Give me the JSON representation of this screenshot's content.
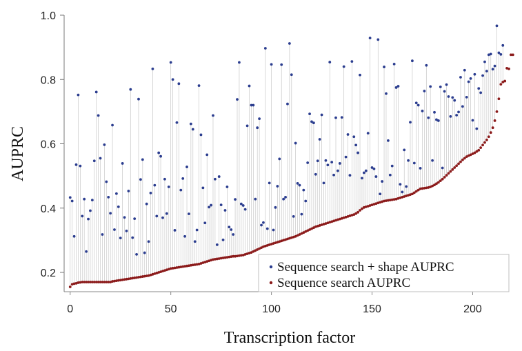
{
  "chart_data": {
    "type": "scatter",
    "xlabel": "Transcription factor",
    "ylabel": "AUPRC",
    "xlim": [
      -3,
      218
    ],
    "ylim": [
      0.14,
      1.0
    ],
    "x_ticks": [
      0,
      50,
      100,
      150,
      200
    ],
    "y_ticks": [
      0.2,
      0.4,
      0.6,
      0.8,
      1.0
    ],
    "y_tick_labels": [
      "0.2",
      "0.4",
      "0.6",
      "0.8",
      "1.0"
    ],
    "grid": false,
    "legend_position": "bottom-right",
    "colors": {
      "shape": "#2b3d8f",
      "seq": "#8b1a1a",
      "stem": "#c8c8c8"
    },
    "series": [
      {
        "name": "Sequence search + shape AUPRC",
        "values": [
          0.433,
          0.422,
          0.312,
          0.535,
          0.752,
          0.531,
          0.375,
          0.428,
          0.265,
          0.366,
          0.392,
          0.425,
          0.547,
          0.761,
          0.688,
          0.555,
          0.318,
          0.597,
          0.482,
          0.434,
          0.384,
          0.658,
          0.333,
          0.445,
          0.404,
          0.307,
          0.539,
          0.371,
          0.329,
          0.453,
          0.769,
          0.308,
          0.367,
          0.256,
          0.739,
          0.489,
          0.551,
          0.261,
          0.413,
          0.296,
          0.447,
          0.833,
          0.471,
          0.375,
          0.572,
          0.561,
          0.37,
          0.49,
          0.383,
          0.466,
          0.853,
          0.8,
          0.331,
          0.666,
          0.787,
          0.456,
          0.492,
          0.312,
          0.528,
          0.382,
          0.662,
          0.645,
          0.296,
          0.332,
          0.781,
          0.628,
          0.463,
          0.354,
          0.566,
          0.403,
          0.409,
          0.688,
          0.49,
          0.286,
          0.498,
          0.41,
          0.301,
          0.393,
          0.466,
          0.341,
          0.333,
          0.318,
          0.427,
          0.738,
          0.853,
          0.413,
          0.408,
          0.396,
          0.656,
          0.78,
          0.72,
          0.72,
          0.428,
          0.65,
          0.678,
          0.347,
          0.355,
          0.897,
          0.336,
          0.478,
          0.847,
          0.332,
          0.402,
          0.468,
          0.553,
          0.846,
          0.428,
          0.434,
          0.724,
          0.912,
          0.815,
          0.374,
          0.602,
          0.477,
          0.471,
          0.381,
          0.456,
          0.422,
          0.541,
          0.693,
          0.669,
          0.665,
          0.505,
          0.547,
          0.614,
          0.69,
          0.478,
          0.548,
          0.534,
          0.854,
          0.543,
          0.503,
          0.681,
          0.516,
          0.539,
          0.682,
          0.84,
          0.559,
          0.629,
          0.502,
          0.856,
          0.622,
          0.596,
          0.572,
          0.814,
          0.493,
          0.51,
          0.516,
          0.633,
          0.929,
          0.526,
          0.522,
          0.498,
          0.924,
          0.444,
          0.483,
          0.839,
          0.756,
          0.61,
          0.503,
          0.531,
          0.848,
          0.775,
          0.779,
          0.474,
          0.45,
          0.581,
          0.467,
          0.548,
          0.667,
          0.858,
          0.54,
          0.727,
          0.72,
          0.524,
          0.702,
          0.764,
          0.844,
          0.681,
          0.778,
          0.548,
          0.698,
          0.675,
          0.672,
          0.777,
          0.525,
          0.763,
          0.784,
          0.747,
          0.685,
          0.744,
          0.735,
          0.689,
          0.699,
          0.807,
          0.716,
          0.829,
          0.745,
          0.793,
          0.803,
          0.673,
          0.816,
          0.647,
          0.772,
          0.759,
          0.812,
          0.855,
          0.826,
          0.877,
          0.879,
          0.832,
          0.842,
          0.967,
          0.883,
          0.878,
          0.906
        ]
      },
      {
        "name": "Sequence search  AUPRC",
        "values": [
          0.155,
          0.163,
          0.165,
          0.166,
          0.168,
          0.169,
          0.17,
          0.17,
          0.17,
          0.17,
          0.17,
          0.17,
          0.17,
          0.17,
          0.17,
          0.17,
          0.17,
          0.17,
          0.17,
          0.17,
          0.17,
          0.172,
          0.173,
          0.174,
          0.175,
          0.176,
          0.177,
          0.178,
          0.179,
          0.18,
          0.181,
          0.182,
          0.183,
          0.184,
          0.185,
          0.186,
          0.187,
          0.188,
          0.189,
          0.19,
          0.192,
          0.194,
          0.196,
          0.198,
          0.2,
          0.202,
          0.204,
          0.206,
          0.208,
          0.21,
          0.212,
          0.213,
          0.214,
          0.215,
          0.216,
          0.217,
          0.218,
          0.219,
          0.22,
          0.221,
          0.222,
          0.223,
          0.224,
          0.225,
          0.226,
          0.228,
          0.23,
          0.232,
          0.234,
          0.236,
          0.238,
          0.24,
          0.241,
          0.242,
          0.243,
          0.244,
          0.245,
          0.246,
          0.247,
          0.248,
          0.249,
          0.25,
          0.25,
          0.251,
          0.252,
          0.253,
          0.254,
          0.256,
          0.258,
          0.26,
          0.262,
          0.265,
          0.268,
          0.271,
          0.274,
          0.277,
          0.28,
          0.282,
          0.284,
          0.286,
          0.288,
          0.29,
          0.292,
          0.294,
          0.296,
          0.298,
          0.3,
          0.302,
          0.304,
          0.306,
          0.308,
          0.31,
          0.312,
          0.315,
          0.318,
          0.321,
          0.324,
          0.327,
          0.33,
          0.333,
          0.336,
          0.339,
          0.342,
          0.344,
          0.346,
          0.348,
          0.35,
          0.352,
          0.354,
          0.356,
          0.358,
          0.36,
          0.362,
          0.364,
          0.366,
          0.368,
          0.37,
          0.372,
          0.374,
          0.376,
          0.378,
          0.38,
          0.383,
          0.387,
          0.393,
          0.398,
          0.402,
          0.404,
          0.406,
          0.408,
          0.41,
          0.412,
          0.414,
          0.416,
          0.418,
          0.42,
          0.422,
          0.423,
          0.424,
          0.425,
          0.426,
          0.427,
          0.428,
          0.43,
          0.432,
          0.434,
          0.436,
          0.438,
          0.44,
          0.442,
          0.444,
          0.448,
          0.452,
          0.456,
          0.46,
          0.461,
          0.462,
          0.463,
          0.464,
          0.466,
          0.469,
          0.472,
          0.476,
          0.48,
          0.485,
          0.49,
          0.496,
          0.502,
          0.508,
          0.514,
          0.52,
          0.526,
          0.532,
          0.538,
          0.544,
          0.55,
          0.555,
          0.56,
          0.563,
          0.566,
          0.569,
          0.572,
          0.576,
          0.58,
          0.588,
          0.596,
          0.604,
          0.612,
          0.622,
          0.635,
          0.65,
          0.672,
          0.7,
          0.74,
          0.785,
          0.792,
          0.795,
          0.835,
          0.833,
          0.877,
          0.877
        ]
      }
    ]
  }
}
